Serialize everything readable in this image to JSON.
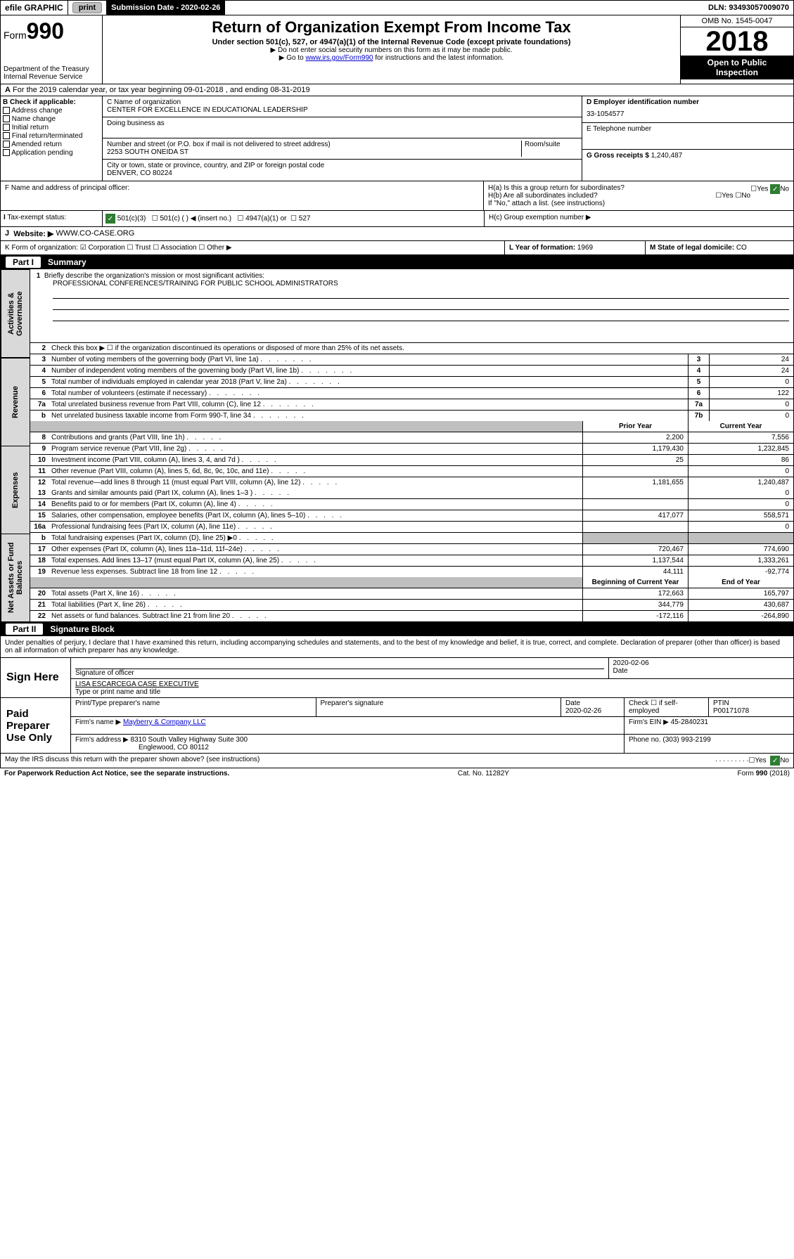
{
  "topbar": {
    "efile": "efile GRAPHIC",
    "print": "print",
    "submission_label": "Submission Date - 2020-02-26",
    "dln": "DLN: 93493057009070"
  },
  "header": {
    "form_prefix": "Form",
    "form_no": "990",
    "dept": "Department of the Treasury",
    "irs": "Internal Revenue Service",
    "title": "Return of Organization Exempt From Income Tax",
    "subtitle": "Under section 501(c), 527, or 4947(a)(1) of the Internal Revenue Code (except private foundations)",
    "note1": "▶ Do not enter social security numbers on this form as it may be made public.",
    "note2_pre": "▶ Go to ",
    "note2_link": "www.irs.gov/Form990",
    "note2_post": " for instructions and the latest information.",
    "omb": "OMB No. 1545-0047",
    "taxyear": "2018",
    "open": "Open to Public",
    "inspection": "Inspection"
  },
  "A": "For the 2019 calendar year, or tax year beginning 09-01-2018  , and ending 08-31-2019",
  "B": {
    "label": "B Check if applicable:",
    "opts": [
      "Address change",
      "Name change",
      "Initial return",
      "Final return/terminated",
      "Amended return",
      "Application pending"
    ]
  },
  "C": {
    "name_label": "C Name of organization",
    "name": "CENTER FOR EXCELLENCE IN EDUCATIONAL LEADERSHIP",
    "dba_label": "Doing business as",
    "addr_label": "Number and street (or P.O. box if mail is not delivered to street address)",
    "room": "Room/suite",
    "addr": "2253 SOUTH ONEIDA ST",
    "city_label": "City or town, state or province, country, and ZIP or foreign postal code",
    "city": "DENVER, CO  80224"
  },
  "D": {
    "label": "D Employer identification number",
    "val": "33-1054577"
  },
  "E": {
    "label": "E Telephone number",
    "val": ""
  },
  "G": {
    "label": "G Gross receipts $",
    "val": "1,240,487"
  },
  "F": "F  Name and address of principal officer:",
  "H": {
    "a": "H(a)  Is this a group return for subordinates?",
    "b": "H(b)  Are all subordinates included?",
    "b2": "If \"No,\" attach a list. (see instructions)",
    "c": "H(c)  Group exemption number ▶",
    "yes": "Yes",
    "no": "No"
  },
  "I": {
    "label": "Tax-exempt status:",
    "c3": "501(c)(3)",
    "c": "501(c) (  ) ◀ (insert no.)",
    "a": "4947(a)(1) or",
    "s527": "527"
  },
  "J": {
    "label": "Website: ▶",
    "val": "WWW.CO-CASE.ORG"
  },
  "K": "K Form of organization:  ☑ Corporation  ☐ Trust  ☐ Association  ☐ Other ▶",
  "L": {
    "label": "L Year of formation:",
    "val": "1969"
  },
  "M": {
    "label": "M State of legal domicile:",
    "val": "CO"
  },
  "part1": {
    "tag": "Part I",
    "title": "Summary",
    "l1": "Briefly describe the organization's mission or most significant activities:",
    "mission": "PROFESSIONAL CONFERENCES/TRAINING FOR PUBLIC SCHOOL ADMINISTRATORS",
    "l2": "Check this box ▶ ☐  if the organization discontinued its operations or disposed of more than 25% of its net assets.",
    "lines_top": [
      {
        "n": "3",
        "t": "Number of voting members of the governing body (Part VI, line 1a)",
        "ln": "3",
        "v": "24"
      },
      {
        "n": "4",
        "t": "Number of independent voting members of the governing body (Part VI, line 1b)",
        "ln": "4",
        "v": "24"
      },
      {
        "n": "5",
        "t": "Total number of individuals employed in calendar year 2018 (Part V, line 2a)",
        "ln": "5",
        "v": "0"
      },
      {
        "n": "6",
        "t": "Total number of volunteers (estimate if necessary)",
        "ln": "6",
        "v": "122"
      },
      {
        "n": "7a",
        "t": "Total unrelated business revenue from Part VIII, column (C), line 12",
        "ln": "7a",
        "v": "0"
      },
      {
        "n": "b",
        "t": "Net unrelated business taxable income from Form 990-T, line 34",
        "ln": "7b",
        "v": "0"
      }
    ],
    "col_prior": "Prior Year",
    "col_current": "Current Year",
    "beg": "Beginning of Current Year",
    "eoy": "End of Year",
    "revenue": [
      {
        "n": "8",
        "t": "Contributions and grants (Part VIII, line 1h)",
        "p": "2,200",
        "c": "7,556"
      },
      {
        "n": "9",
        "t": "Program service revenue (Part VIII, line 2g)",
        "p": "1,179,430",
        "c": "1,232,845"
      },
      {
        "n": "10",
        "t": "Investment income (Part VIII, column (A), lines 3, 4, and 7d )",
        "p": "25",
        "c": "86"
      },
      {
        "n": "11",
        "t": "Other revenue (Part VIII, column (A), lines 5, 6d, 8c, 9c, 10c, and 11e)",
        "p": "",
        "c": "0"
      },
      {
        "n": "12",
        "t": "Total revenue—add lines 8 through 11 (must equal Part VIII, column (A), line 12)",
        "p": "1,181,655",
        "c": "1,240,487"
      }
    ],
    "expenses": [
      {
        "n": "13",
        "t": "Grants and similar amounts paid (Part IX, column (A), lines 1–3 )",
        "p": "",
        "c": "0"
      },
      {
        "n": "14",
        "t": "Benefits paid to or for members (Part IX, column (A), line 4)",
        "p": "",
        "c": "0"
      },
      {
        "n": "15",
        "t": "Salaries, other compensation, employee benefits (Part IX, column (A), lines 5–10)",
        "p": "417,077",
        "c": "558,571"
      },
      {
        "n": "16a",
        "t": "Professional fundraising fees (Part IX, column (A), line 11e)",
        "p": "",
        "c": "0"
      },
      {
        "n": "b",
        "t": "Total fundraising expenses (Part IX, column (D), line 25) ▶0",
        "p": "grey",
        "c": "grey"
      },
      {
        "n": "17",
        "t": "Other expenses (Part IX, column (A), lines 11a–11d, 11f–24e)",
        "p": "720,467",
        "c": "774,690"
      },
      {
        "n": "18",
        "t": "Total expenses. Add lines 13–17 (must equal Part IX, column (A), line 25)",
        "p": "1,137,544",
        "c": "1,333,261"
      },
      {
        "n": "19",
        "t": "Revenue less expenses. Subtract line 18 from line 12",
        "p": "44,111",
        "c": "-92,774"
      }
    ],
    "netassets": [
      {
        "n": "20",
        "t": "Total assets (Part X, line 16)",
        "p": "172,663",
        "c": "165,797"
      },
      {
        "n": "21",
        "t": "Total liabilities (Part X, line 26)",
        "p": "344,779",
        "c": "430,687"
      },
      {
        "n": "22",
        "t": "Net assets or fund balances. Subtract line 21 from line 20",
        "p": "-172,116",
        "c": "-264,890"
      }
    ],
    "vtab1": "Activities & Governance",
    "vtab2": "Revenue",
    "vtab3": "Expenses",
    "vtab4": "Net Assets or Fund Balances"
  },
  "part2": {
    "tag": "Part II",
    "title": "Signature Block",
    "penalty": "Under penalties of perjury, I declare that I have examined this return, including accompanying schedules and statements, and to the best of my knowledge and belief, it is true, correct, and complete. Declaration of preparer (other than officer) is based on all information of which preparer has any knowledge.",
    "sign_here": "Sign Here",
    "sig_officer": "Signature of officer",
    "sig_date": "2020-02-06",
    "date_lbl": "Date",
    "officer": "LISA ESCARCEGA  CASE EXECUTIVE",
    "type_name": "Type or print name and title",
    "paid": "Paid Preparer Use Only",
    "ptp": "Print/Type preparer's name",
    "psig": "Preparer's signature",
    "pdate_lbl": "Date",
    "pdate": "2020-02-26",
    "check_se": "Check ☐ if self-employed",
    "ptin_lbl": "PTIN",
    "ptin": "P00171078",
    "firm_name_lbl": "Firm's name    ▶",
    "firm_name": "Mayberry & Company LLC",
    "firm_ein_lbl": "Firm's EIN ▶",
    "firm_ein": "45-2840231",
    "firm_addr_lbl": "Firm's address ▶",
    "firm_addr1": "8310 South Valley Highway Suite 300",
    "firm_addr2": "Englewood, CO  80112",
    "phone_lbl": "Phone no.",
    "phone": "(303) 993-2199",
    "discuss": "May the IRS discuss this return with the preparer shown above? (see instructions)",
    "yes": "Yes",
    "no": "No"
  },
  "footer": {
    "pra": "For Paperwork Reduction Act Notice, see the separate instructions.",
    "cat": "Cat. No. 11282Y",
    "form": "Form 990 (2018)"
  }
}
